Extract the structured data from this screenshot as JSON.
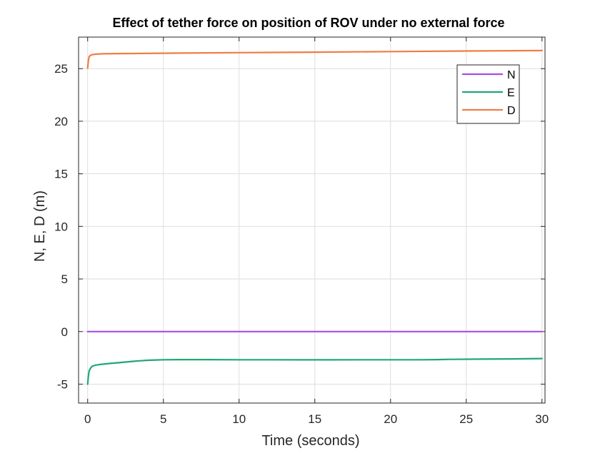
{
  "chart_data": {
    "type": "line",
    "title": "Effect of tether force on position of ROV under no external force",
    "xlabel": "Time (seconds)",
    "ylabel": "N, E, D (m)",
    "xlim": [
      -0.6,
      30.2
    ],
    "ylim": [
      -6.8,
      28
    ],
    "xticks": [
      0,
      5,
      10,
      15,
      20,
      25,
      30
    ],
    "yticks": [
      -5,
      0,
      5,
      10,
      15,
      20,
      25
    ],
    "grid": true,
    "legend_position": "top-right",
    "series": [
      {
        "name": "N",
        "color": "#a64ee3",
        "x": [
          0,
          30
        ],
        "y": [
          0,
          0
        ]
      },
      {
        "name": "E",
        "color": "#1fa872",
        "x": [
          0,
          0.05,
          0.1,
          0.2,
          0.3,
          0.5,
          0.8,
          1.0,
          1.5,
          2.0,
          2.5,
          3.0,
          3.5,
          4.0,
          4.5,
          5.0,
          6.0,
          8.0,
          10.0,
          12.0,
          14.0,
          16.0,
          18.0,
          20.0,
          22.0,
          23.0,
          24.0,
          26.0,
          28.0,
          30.0
        ],
        "y": [
          -5.0,
          -4.2,
          -3.75,
          -3.45,
          -3.3,
          -3.2,
          -3.13,
          -3.1,
          -3.03,
          -2.97,
          -2.9,
          -2.83,
          -2.78,
          -2.73,
          -2.7,
          -2.68,
          -2.67,
          -2.67,
          -2.68,
          -2.68,
          -2.69,
          -2.69,
          -2.68,
          -2.68,
          -2.68,
          -2.67,
          -2.64,
          -2.62,
          -2.6,
          -2.57
        ]
      },
      {
        "name": "D",
        "color": "#ef7d45",
        "x": [
          0,
          0.05,
          0.1,
          0.2,
          0.3,
          0.5,
          0.8,
          1.0,
          2.0,
          3.0,
          5.0,
          10.0,
          15.0,
          20.0,
          25.0,
          30.0
        ],
        "y": [
          25.05,
          25.8,
          26.15,
          26.28,
          26.33,
          26.37,
          26.4,
          26.41,
          26.43,
          26.44,
          26.47,
          26.52,
          26.57,
          26.62,
          26.68,
          26.72
        ]
      }
    ]
  }
}
